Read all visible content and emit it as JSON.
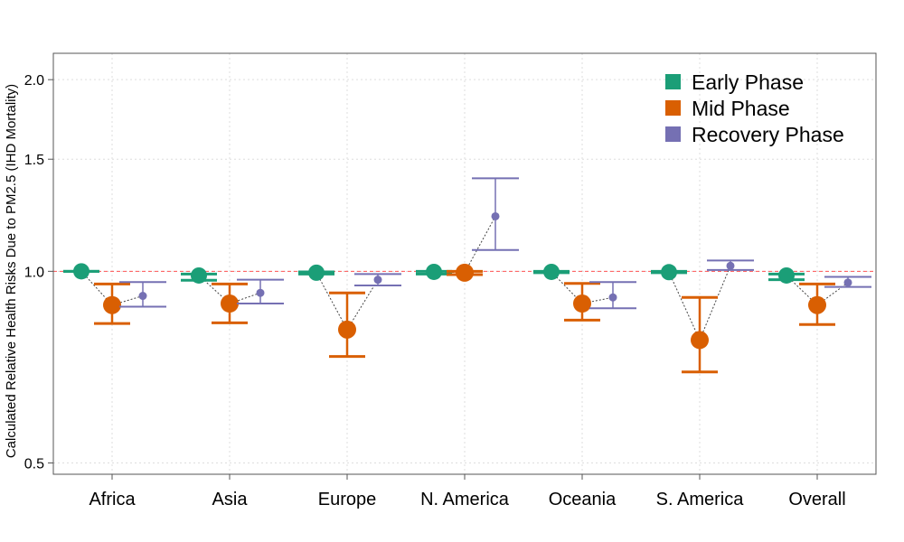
{
  "chart_data": {
    "type": "errorbar",
    "ylabel": "Calculated Relative Health Risks Due to PM2.5 (IHD Mortality)",
    "y_scale": "log",
    "ylim": [
      0.48,
      2.2
    ],
    "yticks": [
      0.5,
      1.0,
      1.5,
      2.0
    ],
    "ytick_labels": [
      "0.5",
      "1.0",
      "1.5",
      "2.0"
    ],
    "reference_line": 1.0,
    "reference_color": "#ff5555",
    "grid": true,
    "legend_position": "top-right",
    "categories": [
      "Africa",
      "Asia",
      "Europe",
      "N. America",
      "Oceania",
      "S. America",
      "Overall"
    ],
    "series": [
      {
        "name": "Early Phase",
        "color": "#1b9e77",
        "values": [
          1.0,
          0.985,
          0.995,
          0.998,
          0.998,
          0.997,
          0.985
        ],
        "lower": [
          1.0,
          0.968,
          0.99,
          0.99,
          0.995,
          0.995,
          0.97
        ],
        "upper": [
          1.0,
          0.99,
          0.998,
          1.0,
          1.0,
          1.0,
          0.99
        ]
      },
      {
        "name": "Mid Phase",
        "color": "#d95f02",
        "values": [
          0.885,
          0.89,
          0.81,
          0.995,
          0.89,
          0.78,
          0.885
        ],
        "lower": [
          0.828,
          0.83,
          0.735,
          0.988,
          0.838,
          0.695,
          0.825
        ],
        "upper": [
          0.955,
          0.955,
          0.925,
          1.0,
          0.957,
          0.91,
          0.955
        ]
      },
      {
        "name": "Recovery Phase",
        "color": "#7570b3",
        "values": [
          0.915,
          0.925,
          0.97,
          1.22,
          0.91,
          1.02,
          0.96
        ],
        "lower": [
          0.88,
          0.89,
          0.95,
          1.08,
          0.875,
          1.005,
          0.945
        ],
        "upper": [
          0.962,
          0.97,
          0.99,
          1.4,
          0.962,
          1.04,
          0.98
        ]
      }
    ]
  }
}
